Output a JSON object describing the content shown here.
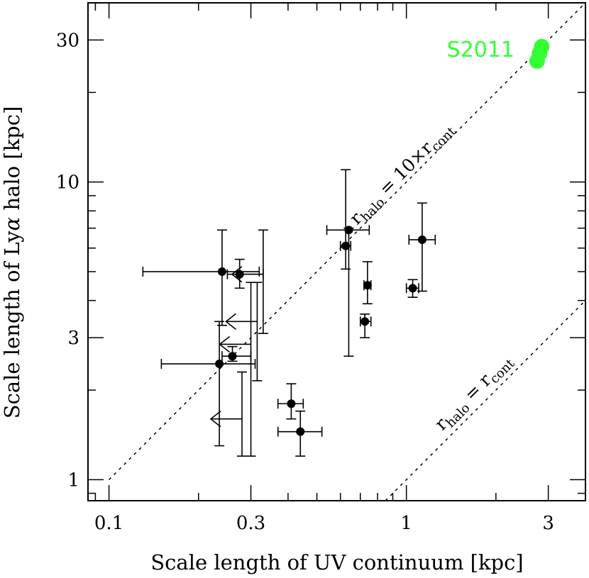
{
  "chart_data": {
    "type": "scatter",
    "xlabel": "Scale length of UV continuum [kpc]",
    "ylabel_prefix": "Scale length of Ly",
    "ylabel_greek": "α",
    "ylabel_suffix": " halo [kpc]",
    "xscale": "log",
    "yscale": "log",
    "xlim": [
      0.085,
      4.0
    ],
    "ylim": [
      0.85,
      40.0
    ],
    "xticks": [
      {
        "value": 0.1,
        "label": "0.1"
      },
      {
        "value": 0.3,
        "label": "0.3"
      },
      {
        "value": 1,
        "label": "1"
      },
      {
        "value": 3,
        "label": "3"
      }
    ],
    "yticks": [
      {
        "value": 1,
        "label": "1"
      },
      {
        "value": 3,
        "label": "3"
      },
      {
        "value": 10,
        "label": "10"
      },
      {
        "value": 30,
        "label": "30"
      }
    ],
    "lines": [
      {
        "slope_factor": 10,
        "label_main": "r",
        "label_sub1": "halo",
        "label_eq": " = 10×r",
        "label_sub2": "cont"
      },
      {
        "slope_factor": 1,
        "label_main": "r",
        "label_sub1": "halo",
        "label_eq": " = r",
        "label_sub2": "cont"
      }
    ],
    "points": [
      {
        "x": 0.24,
        "y": 5.0,
        "xerr": [
          0.13,
          0.32
        ],
        "yerr": [
          3.3,
          6.9
        ]
      },
      {
        "x": 0.275,
        "y": 4.9,
        "xerr": [
          0.25,
          0.33
        ],
        "yerr": [
          4.4,
          5.5
        ]
      },
      {
        "x": 0.26,
        "y": 2.6,
        "xerr": [
          0.24,
          0.3
        ],
        "yerr": [
          2.5,
          2.8
        ]
      },
      {
        "x": 0.235,
        "y": 2.45,
        "xerr": [
          0.15,
          0.31
        ],
        "yerr": [
          1.3,
          3.4
        ]
      },
      {
        "x": 0.41,
        "y": 1.8,
        "xerr": [
          0.37,
          0.45
        ],
        "yerr": [
          1.6,
          2.1
        ]
      },
      {
        "x": 0.44,
        "y": 1.45,
        "xerr": [
          0.37,
          0.52
        ],
        "yerr": [
          1.2,
          1.7
        ]
      },
      {
        "x": 0.625,
        "y": 6.1,
        "xerr": [
          0.6,
          0.65
        ],
        "yerr": [
          5.1,
          11.0
        ]
      },
      {
        "x": 0.64,
        "y": 6.9,
        "xerr": [
          0.54,
          0.75
        ],
        "yerr": [
          2.6,
          7.0
        ]
      },
      {
        "x": 0.74,
        "y": 4.5,
        "xerr": [
          0.72,
          0.76
        ],
        "yerr": [
          3.9,
          5.4
        ]
      },
      {
        "x": 0.725,
        "y": 3.4,
        "xerr": [
          0.7,
          0.76
        ],
        "yerr": [
          3.0,
          3.6
        ]
      },
      {
        "x": 1.05,
        "y": 4.4,
        "xerr": [
          1.0,
          1.1
        ],
        "yerr": [
          4.1,
          4.7
        ]
      },
      {
        "x": 1.13,
        "y": 6.4,
        "xerr": [
          1.02,
          1.25
        ],
        "yerr": [
          4.3,
          8.5
        ]
      }
    ],
    "upper_limits": [
      {
        "x": 0.33,
        "y": 4.9,
        "yerr": [
          3.1,
          6.9
        ]
      },
      {
        "x": 0.315,
        "y": 3.4,
        "yerr": [
          2.15,
          4.6
        ]
      },
      {
        "x": 0.3,
        "y": 2.85,
        "yerr": [
          1.2,
          4.6
        ]
      },
      {
        "x": 0.28,
        "y": 1.6,
        "yerr": [
          1.2,
          2.3
        ]
      }
    ],
    "s2011": {
      "label": "S2011",
      "color": "#33ff33",
      "points": [
        {
          "x": 2.85,
          "y": 28.5
        },
        {
          "x": 2.75,
          "y": 25.5
        },
        {
          "x": 2.8,
          "y": 27.0
        }
      ]
    }
  }
}
